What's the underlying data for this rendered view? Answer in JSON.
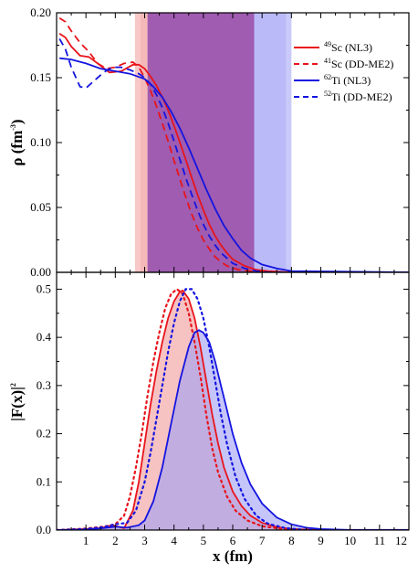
{
  "colors": {
    "sc": "#e8141b",
    "ti": "#1414e0",
    "sc_band": "#f29a9a",
    "ti_band": "#9f9ff5",
    "overlap": "#9a4fa8"
  },
  "chart_data": [
    {
      "type": "line",
      "id": "density",
      "ylabel": "ρ (fm⁻³)",
      "ylabel_main": "ρ (fm",
      "ylabel_sup": "-3",
      "ylabel_end": ")",
      "xlim": [
        0,
        12
      ],
      "ylim": [
        0,
        0.2
      ],
      "y_ticks": [
        "0.00",
        "0.05",
        "0.10",
        "0.15",
        "0.20"
      ],
      "legend_position": "top-right",
      "series": [
        {
          "key": "sc_nl3",
          "name": "⁴⁹Sc (NL3)",
          "name_sup": "49",
          "name_main": "Sc (NL3)",
          "color": "#e8141b",
          "dash": "solid",
          "x": [
            0.1,
            0.3,
            0.5,
            0.8,
            1.1,
            1.4,
            1.8,
            2.2,
            2.6,
            2.8,
            3.0,
            3.2,
            3.4,
            3.6,
            3.8,
            4.0,
            4.2,
            4.4,
            4.6,
            4.8,
            5.0,
            5.2,
            5.4,
            5.6,
            5.8,
            6.0,
            6.4,
            6.8,
            7.2,
            8,
            12
          ],
          "y": [
            0.184,
            0.181,
            0.174,
            0.167,
            0.166,
            0.161,
            0.154,
            0.155,
            0.16,
            0.16,
            0.157,
            0.151,
            0.144,
            0.135,
            0.125,
            0.113,
            0.1,
            0.087,
            0.073,
            0.06,
            0.048,
            0.037,
            0.028,
            0.021,
            0.015,
            0.01,
            0.005,
            0.002,
            0.001,
            0,
            0
          ]
        },
        {
          "key": "sc_ddme2",
          "name": "⁴¹Sc (DD-ME2)",
          "name_sup": "41",
          "name_main": "Sc (DD-ME2)",
          "color": "#e8141b",
          "dash": "dashed",
          "x": [
            0.1,
            0.3,
            0.5,
            0.8,
            1.1,
            1.4,
            1.7,
            2.0,
            2.3,
            2.6,
            2.8,
            3.0,
            3.2,
            3.4,
            3.6,
            3.8,
            4.0,
            4.2,
            4.4,
            4.6,
            4.8,
            5.0,
            5.2,
            5.4,
            5.6,
            5.8,
            6.2,
            6.6,
            7.2,
            12
          ],
          "y": [
            0.196,
            0.193,
            0.186,
            0.177,
            0.17,
            0.161,
            0.157,
            0.158,
            0.161,
            0.162,
            0.158,
            0.15,
            0.14,
            0.128,
            0.115,
            0.101,
            0.086,
            0.072,
            0.058,
            0.045,
            0.034,
            0.025,
            0.018,
            0.012,
            0.008,
            0.005,
            0.002,
            0.001,
            0,
            0
          ]
        },
        {
          "key": "ti_nl3",
          "name": "⁶²Ti (NL3)",
          "name_sup": "62",
          "name_main": "Ti (NL3)",
          "color": "#1414e0",
          "dash": "solid",
          "x": [
            0.1,
            0.5,
            1.0,
            1.5,
            2.0,
            2.5,
            3.0,
            3.3,
            3.6,
            3.9,
            4.2,
            4.5,
            4.8,
            5.1,
            5.4,
            5.7,
            6.0,
            6.3,
            6.6,
            7.0,
            7.5,
            8.0,
            12
          ],
          "y": [
            0.165,
            0.164,
            0.161,
            0.157,
            0.155,
            0.153,
            0.149,
            0.143,
            0.135,
            0.124,
            0.111,
            0.096,
            0.08,
            0.064,
            0.049,
            0.036,
            0.026,
            0.017,
            0.011,
            0.006,
            0.003,
            0.001,
            0
          ]
        },
        {
          "key": "ti_ddme2",
          "name": "⁵²Ti (DD-ME2)",
          "name_sup": "52",
          "name_main": "Ti (DD-ME2)",
          "color": "#1414e0",
          "dash": "dashed",
          "x": [
            0.1,
            0.3,
            0.5,
            0.8,
            1.0,
            1.3,
            1.6,
            1.9,
            2.2,
            2.5,
            2.8,
            3.0,
            3.2,
            3.4,
            3.6,
            3.8,
            4.0,
            4.2,
            4.4,
            4.6,
            4.8,
            5.0,
            5.2,
            5.4,
            5.6,
            5.8,
            6.0,
            6.4,
            6.8,
            7.2,
            12
          ],
          "y": [
            0.18,
            0.172,
            0.158,
            0.143,
            0.142,
            0.148,
            0.154,
            0.158,
            0.158,
            0.156,
            0.153,
            0.15,
            0.145,
            0.137,
            0.127,
            0.115,
            0.101,
            0.087,
            0.073,
            0.06,
            0.048,
            0.037,
            0.028,
            0.021,
            0.015,
            0.011,
            0.007,
            0.003,
            0.001,
            0,
            0
          ]
        }
      ],
      "bands": [
        {
          "key": "sc_band",
          "x": [
            2.67,
            6.73
          ],
          "color": "#f29a9a"
        },
        {
          "key": "ti_band",
          "x": [
            3.1,
            8.0
          ],
          "color": "#9f9ff5"
        }
      ]
    },
    {
      "type": "line",
      "id": "form_factor",
      "xlabel": "x (fm)",
      "xlabel_main": "x (fm)",
      "ylabel": "|F(x)|²",
      "ylabel_main": "|F(x)|",
      "ylabel_sup": "2",
      "xlim": [
        0,
        12
      ],
      "ylim": [
        0,
        0.535
      ],
      "x_ticks": [
        "1",
        "2",
        "3",
        "4",
        "5",
        "6",
        "7",
        "8",
        "9",
        "10",
        "11",
        "12"
      ],
      "y_ticks": [
        "0.0",
        "0.1",
        "0.2",
        "0.3",
        "0.4",
        "0.5"
      ],
      "series": [
        {
          "key": "sc_solid",
          "color": "#e8141b",
          "dash": "solid",
          "fill": true,
          "x": [
            0,
            1.0,
            1.5,
            1.9,
            2.3,
            2.6,
            2.8,
            3.0,
            3.2,
            3.4,
            3.6,
            3.8,
            4.0,
            4.2,
            4.3,
            4.5,
            4.7,
            4.9,
            5.1,
            5.3,
            5.5,
            5.7,
            6.0,
            6.3,
            6.6,
            7.0,
            7.5,
            8.0,
            9.0,
            12
          ],
          "y": [
            0,
            0.002,
            0.004,
            0.01,
            0.004,
            0.04,
            0.1,
            0.18,
            0.26,
            0.33,
            0.39,
            0.44,
            0.475,
            0.495,
            0.497,
            0.48,
            0.44,
            0.38,
            0.31,
            0.24,
            0.18,
            0.13,
            0.08,
            0.05,
            0.03,
            0.015,
            0.006,
            0.002,
            0,
            0
          ]
        },
        {
          "key": "sc_dotted",
          "color": "#e8141b",
          "dash": "dotted",
          "fill": false,
          "x": [
            0,
            1.0,
            1.6,
            2.0,
            2.3,
            2.5,
            2.7,
            2.9,
            3.1,
            3.3,
            3.5,
            3.7,
            3.9,
            4.1,
            4.3,
            4.5,
            4.7,
            4.9,
            5.1,
            5.3,
            5.5,
            5.8,
            6.1,
            6.5,
            7.0,
            7.6,
            8.5,
            12
          ],
          "y": [
            0,
            0.003,
            0.007,
            0.012,
            0.03,
            0.07,
            0.13,
            0.2,
            0.28,
            0.35,
            0.41,
            0.46,
            0.49,
            0.5,
            0.49,
            0.45,
            0.39,
            0.32,
            0.24,
            0.17,
            0.12,
            0.07,
            0.04,
            0.02,
            0.008,
            0.003,
            0,
            0
          ]
        },
        {
          "key": "ti_solid",
          "color": "#1414e0",
          "dash": "solid",
          "fill": true,
          "x": [
            0,
            1.0,
            1.6,
            2.0,
            2.4,
            2.8,
            3.0,
            3.3,
            3.6,
            3.9,
            4.2,
            4.5,
            4.7,
            4.85,
            5.0,
            5.2,
            5.4,
            5.6,
            5.8,
            6.0,
            6.3,
            6.6,
            7.0,
            7.5,
            8.0,
            8.5,
            9.0,
            10,
            12
          ],
          "y": [
            0,
            0.001,
            0.004,
            0.007,
            0.005,
            0.01,
            0.02,
            0.06,
            0.13,
            0.22,
            0.31,
            0.38,
            0.41,
            0.415,
            0.41,
            0.39,
            0.35,
            0.3,
            0.25,
            0.2,
            0.14,
            0.095,
            0.055,
            0.026,
            0.012,
            0.005,
            0.002,
            0,
            0
          ]
        },
        {
          "key": "ti_dotted",
          "color": "#1414e0",
          "dash": "dotted",
          "fill": false,
          "x": [
            0,
            1.0,
            1.6,
            2.0,
            2.4,
            2.7,
            3.0,
            3.2,
            3.4,
            3.6,
            3.8,
            4.0,
            4.2,
            4.4,
            4.6,
            4.8,
            5.0,
            5.2,
            5.4,
            5.6,
            5.8,
            6.1,
            6.4,
            6.8,
            7.2,
            7.8,
            8.5,
            12
          ],
          "y": [
            0,
            0.002,
            0.006,
            0.012,
            0.015,
            0.04,
            0.1,
            0.16,
            0.23,
            0.3,
            0.37,
            0.43,
            0.475,
            0.5,
            0.5,
            0.48,
            0.44,
            0.38,
            0.31,
            0.24,
            0.18,
            0.11,
            0.065,
            0.03,
            0.013,
            0.004,
            0,
            0
          ]
        }
      ]
    }
  ]
}
